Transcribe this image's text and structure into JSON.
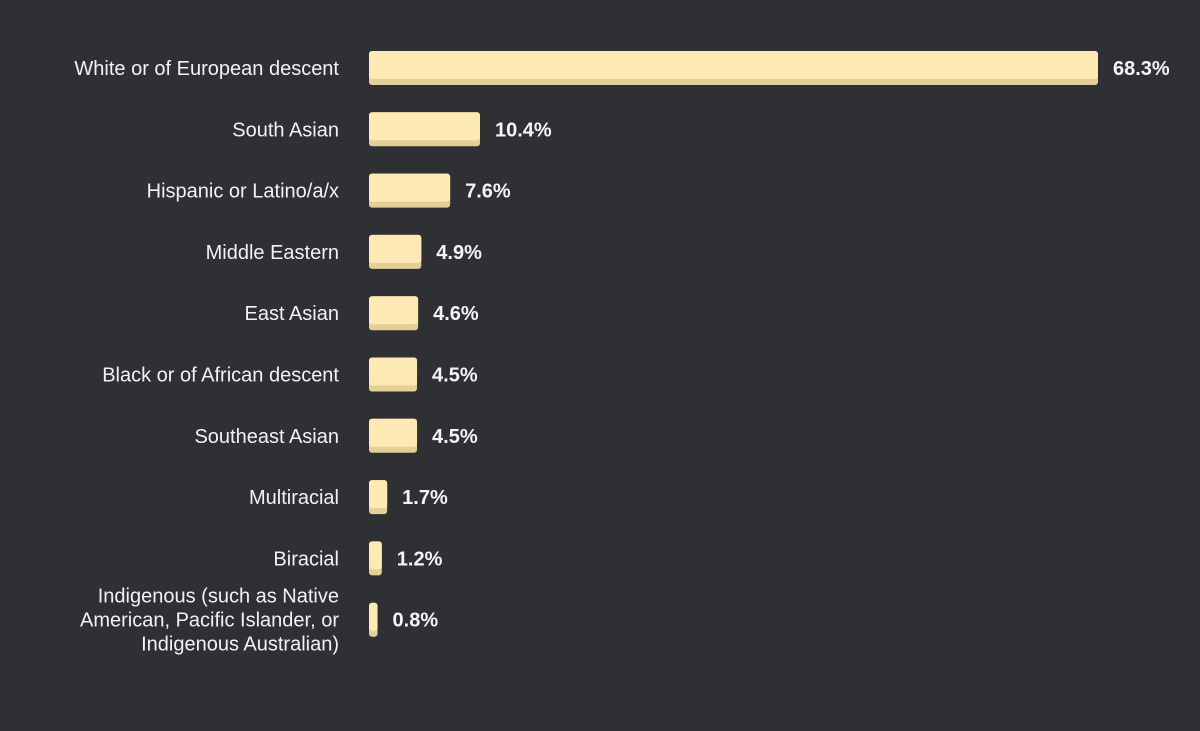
{
  "chart_data": {
    "type": "bar",
    "orientation": "horizontal",
    "title": "",
    "xlabel": "",
    "ylabel": "",
    "categories": [
      [
        "White or of European descent"
      ],
      [
        "South Asian"
      ],
      [
        "Hispanic or Latino/a/x"
      ],
      [
        "Middle Eastern"
      ],
      [
        "East Asian"
      ],
      [
        "Black or of African descent"
      ],
      [
        "Southeast Asian"
      ],
      [
        "Multiracial"
      ],
      [
        "Biracial"
      ],
      [
        "Indigenous (such as Native",
        "American, Pacific Islander, or",
        "Indigenous Australian)"
      ]
    ],
    "values": [
      68.3,
      10.4,
      7.6,
      4.9,
      4.6,
      4.5,
      4.5,
      1.7,
      1.2,
      0.8
    ],
    "value_labels": [
      "68.3%",
      "10.4%",
      "7.6%",
      "4.9%",
      "4.6%",
      "4.5%",
      "4.5%",
      "1.7%",
      "1.2%",
      "0.8%"
    ],
    "xlim": [
      0,
      68.3
    ],
    "grid": false,
    "legend": "none",
    "colors": {
      "background": "#2f3034",
      "bar": "#fde9b3",
      "bar_shadow": "#e3cf98",
      "text": "#f1f2f3"
    }
  }
}
